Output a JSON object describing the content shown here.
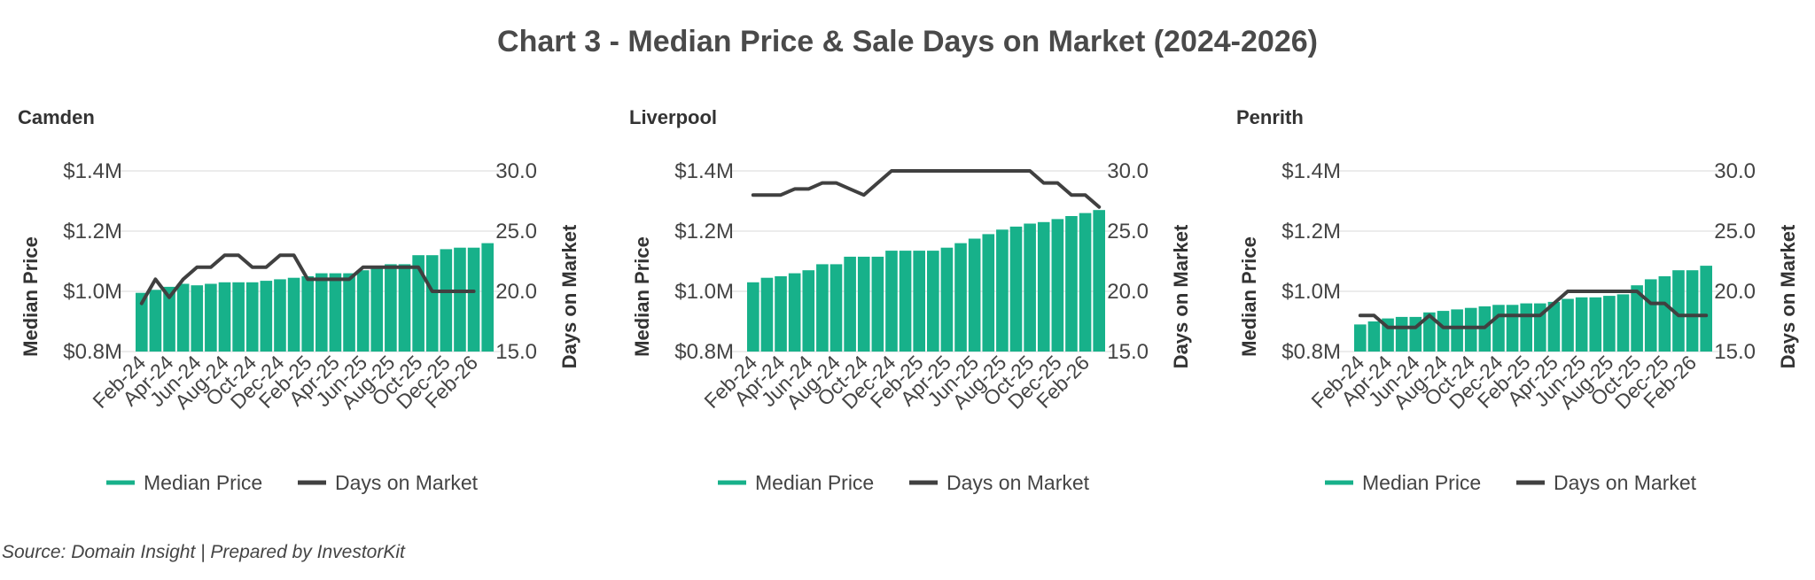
{
  "title": "Chart 3 - Median Price & Sale Days on Market (2024-2026)",
  "source": "Source: Domain Insight | Prepared by InvestorKit",
  "colors": {
    "bar": "#17b18a",
    "line": "#404040",
    "grid": "#e6e6e6",
    "text": "#444444"
  },
  "chart_data": [
    {
      "type": "bar",
      "title": "Camden",
      "ylabel": "Median Price",
      "y2label": "Days on Market",
      "ylim": [
        0.8,
        1.4
      ],
      "y2lim": [
        15,
        30
      ],
      "yticks": [
        "$0.8M",
        "$1.0M",
        "$1.2M",
        "$1.4M"
      ],
      "y2ticks": [
        "15.0",
        "20.0",
        "25.0",
        "30.0"
      ],
      "xticks": [
        "Feb-24",
        "Apr-24",
        "Jun-24",
        "Aug-24",
        "Oct-24",
        "Dec-24",
        "Feb-25",
        "Apr-25",
        "Jun-25",
        "Aug-25",
        "Oct-25",
        "Dec-25",
        "Feb-26"
      ],
      "legend": [
        "Median Price",
        "Days on Market"
      ],
      "legend_position": "bottom",
      "grid": true,
      "series": [
        {
          "name": "Median Price",
          "axis": "left",
          "kind": "bar",
          "values": [
            0.995,
            1.005,
            1.015,
            1.025,
            1.02,
            1.025,
            1.03,
            1.03,
            1.03,
            1.035,
            1.04,
            1.045,
            1.05,
            1.06,
            1.06,
            1.06,
            1.07,
            1.08,
            1.09,
            1.09,
            1.12,
            1.12,
            1.14,
            1.145,
            1.145,
            1.16
          ]
        },
        {
          "name": "Days on Market",
          "axis": "right",
          "kind": "line",
          "values": [
            19,
            21,
            19.5,
            21,
            22,
            22,
            23,
            23,
            22,
            22,
            23,
            23,
            21,
            21,
            21,
            21,
            22,
            22,
            22,
            22,
            22,
            20,
            20,
            20,
            20,
            null
          ]
        }
      ]
    },
    {
      "type": "bar",
      "title": "Liverpool",
      "ylabel": "Median Price",
      "y2label": "Days on Market",
      "ylim": [
        0.8,
        1.4
      ],
      "y2lim": [
        15,
        30
      ],
      "yticks": [
        "$0.8M",
        "$1.0M",
        "$1.2M",
        "$1.4M"
      ],
      "y2ticks": [
        "15.0",
        "20.0",
        "25.0",
        "30.0"
      ],
      "xticks": [
        "Feb-24",
        "Apr-24",
        "Jun-24",
        "Aug-24",
        "Oct-24",
        "Dec-24",
        "Feb-25",
        "Apr-25",
        "Jun-25",
        "Aug-25",
        "Oct-25",
        "Dec-25",
        "Feb-26"
      ],
      "legend": [
        "Median Price",
        "Days on Market"
      ],
      "legend_position": "bottom",
      "grid": true,
      "series": [
        {
          "name": "Median Price",
          "axis": "left",
          "kind": "bar",
          "values": [
            1.03,
            1.045,
            1.05,
            1.06,
            1.07,
            1.09,
            1.09,
            1.115,
            1.115,
            1.115,
            1.135,
            1.135,
            1.135,
            1.135,
            1.145,
            1.16,
            1.175,
            1.19,
            1.205,
            1.215,
            1.225,
            1.23,
            1.24,
            1.25,
            1.26,
            1.27
          ]
        },
        {
          "name": "Days on Market",
          "axis": "right",
          "kind": "line",
          "values": [
            28,
            28,
            28,
            28.5,
            28.5,
            29,
            29,
            28.5,
            28,
            29,
            30,
            30,
            30,
            30,
            30,
            30,
            30,
            30,
            30,
            30,
            30,
            29,
            29,
            28,
            28,
            27
          ]
        }
      ]
    },
    {
      "type": "bar",
      "title": "Penrith",
      "ylabel": "Median Price",
      "y2label": "Days on Market",
      "ylim": [
        0.8,
        1.4
      ],
      "y2lim": [
        15,
        30
      ],
      "yticks": [
        "$0.8M",
        "$1.0M",
        "$1.2M",
        "$1.4M"
      ],
      "y2ticks": [
        "15.0",
        "20.0",
        "25.0",
        "30.0"
      ],
      "xticks": [
        "Feb-24",
        "Apr-24",
        "Jun-24",
        "Aug-24",
        "Oct-24",
        "Dec-24",
        "Feb-25",
        "Apr-25",
        "Jun-25",
        "Aug-25",
        "Oct-25",
        "Dec-25",
        "Feb-26"
      ],
      "legend": [
        "Median Price",
        "Days on Market"
      ],
      "legend_position": "bottom",
      "grid": true,
      "series": [
        {
          "name": "Median Price",
          "axis": "left",
          "kind": "bar",
          "values": [
            0.89,
            0.9,
            0.91,
            0.915,
            0.915,
            0.93,
            0.935,
            0.94,
            0.945,
            0.95,
            0.955,
            0.955,
            0.96,
            0.96,
            0.965,
            0.975,
            0.98,
            0.98,
            0.985,
            0.99,
            1.02,
            1.04,
            1.05,
            1.07,
            1.07,
            1.085
          ]
        },
        {
          "name": "Days on Market",
          "axis": "right",
          "kind": "line",
          "values": [
            18,
            18,
            17,
            17,
            17,
            18,
            17,
            17,
            17,
            17,
            18,
            18,
            18,
            18,
            19,
            20,
            20,
            20,
            20,
            20,
            20,
            19,
            19,
            18,
            18,
            18
          ]
        }
      ]
    }
  ]
}
